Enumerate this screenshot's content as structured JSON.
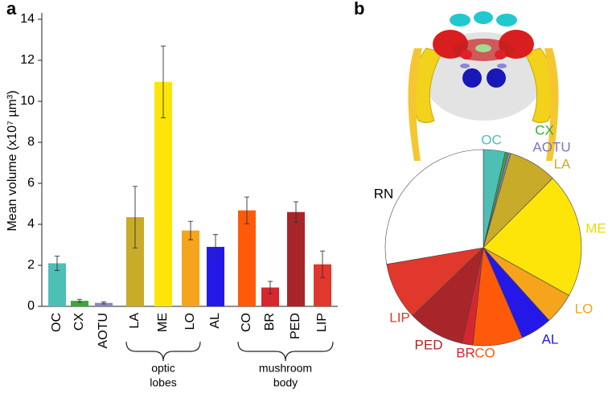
{
  "chart_data": [
    {
      "type": "bar",
      "panel_label": "a",
      "ylabel": "Mean  volume (x10⁷ µm³)",
      "categories": [
        "OC",
        "CX",
        "AOTU",
        "LA",
        "ME",
        "LO",
        "AL",
        "CO",
        "BR",
        "PED",
        "LIP"
      ],
      "values": [
        2.1,
        0.27,
        0.17,
        4.35,
        10.95,
        3.7,
        2.9,
        4.68,
        0.92,
        4.6,
        2.05
      ],
      "errors": [
        0.35,
        0.07,
        0.05,
        1.5,
        1.75,
        0.45,
        0.6,
        0.65,
        0.3,
        0.5,
        0.65
      ],
      "colors": [
        "#4dbfb5",
        "#3aa83a",
        "#8a86c4",
        "#c9ab2a",
        "#fde50a",
        "#f5a41c",
        "#2418e8",
        "#ff5a0a",
        "#d8262f",
        "#a8262a",
        "#e0382c"
      ],
      "ylim": [
        0,
        14
      ],
      "yticks": [
        0,
        2,
        4,
        6,
        8,
        10,
        12,
        14
      ],
      "groups": [
        {
          "lines": [
            "optic",
            "lobes"
          ]
        },
        {
          "lines": [
            "mushroom",
            "body"
          ]
        }
      ]
    },
    {
      "type": "pie",
      "panel_label": "b",
      "categories": [
        "OC",
        "CX",
        "AOTU",
        "LA",
        "ME",
        "LO",
        "AL",
        "CO",
        "BR",
        "PED",
        "LIP",
        "RN"
      ],
      "values": [
        3.6,
        0.5,
        0.4,
        8,
        20.6,
        5.2,
        5.2,
        8.2,
        1.8,
        9.3,
        9.5,
        27.7
      ],
      "colors": [
        "#4dbfb5",
        "#3aa83a",
        "#8a86c4",
        "#c9ab2a",
        "#fde50a",
        "#f5a41c",
        "#2418e8",
        "#ff5a0a",
        "#d8262f",
        "#a8262a",
        "#e0382c",
        "#ffffff"
      ],
      "label_colors": [
        "#4dbfb5",
        "#3aa83a",
        "#7a76c0",
        "#c9ab2a",
        "#f0d800",
        "#f5a41c",
        "#2418e8",
        "#ff5a0a",
        "#d8262f",
        "#a8262a",
        "#e0382c",
        "#000000"
      ]
    }
  ]
}
